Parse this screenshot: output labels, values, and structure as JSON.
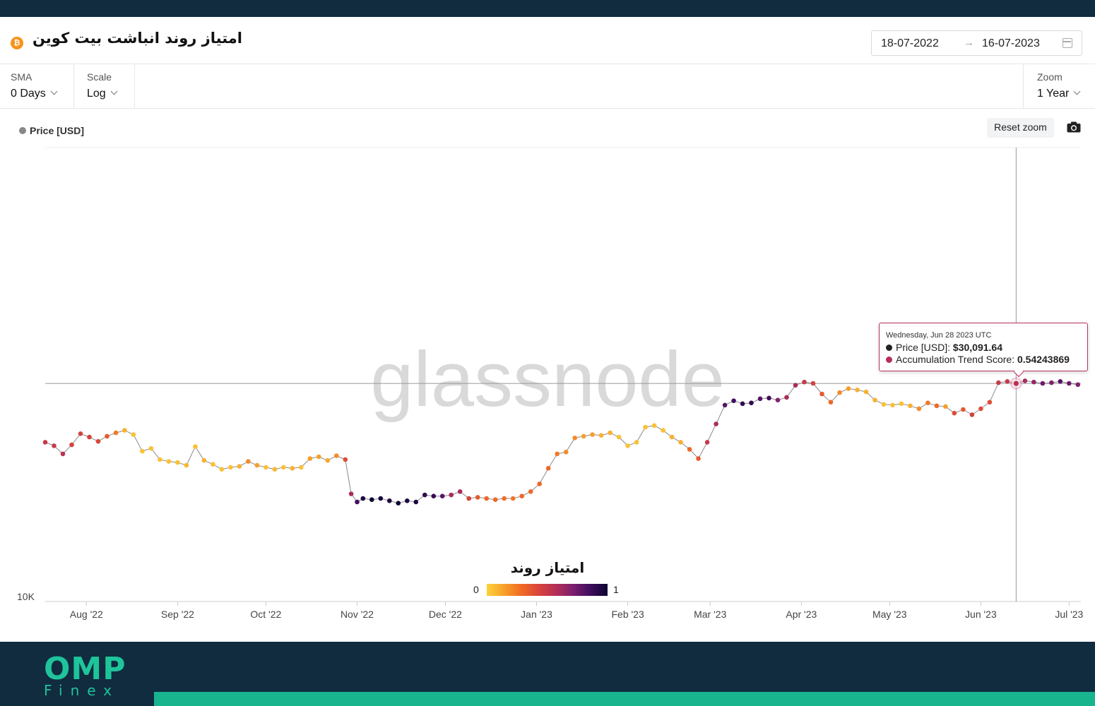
{
  "header": {
    "title": "امتیاز روند انباشت بیت کوین",
    "date_start": "18-07-2022",
    "date_arrow": "→",
    "date_end": "16-07-2023"
  },
  "controls": {
    "sma_label": "SMA",
    "sma_value": "0 Days",
    "scale_label": "Scale",
    "scale_value": "Log",
    "zoom_label": "Zoom",
    "zoom_value": "1 Year"
  },
  "legend": {
    "price_label": "Price [USD]"
  },
  "toolbar": {
    "reset_zoom": "Reset zoom"
  },
  "watermark": "glassnode",
  "tooltip": {
    "date": "Wednesday, Jun 28 2023 UTC",
    "price_label": "Price [USD]:",
    "price_value": "$30,091.64",
    "score_label": "Accumulation Trend Score:",
    "score_value": "0.54243869"
  },
  "colorbar": {
    "title": "امتیاز روند",
    "min": "0",
    "max": "1"
  },
  "brand": {
    "name": "OMP",
    "sub": "Finex"
  },
  "chart_data": {
    "type": "scatter",
    "y_scale": "log",
    "y_tick_labels": [
      "10K"
    ],
    "x_tick_labels": [
      "Aug '22",
      "Sep '22",
      "Oct '22",
      "Nov '22",
      "Dec '22",
      "Jan '23",
      "Feb '23",
      "Mar '23",
      "Apr '23",
      "May '23",
      "Jun '23",
      "Jul '23"
    ],
    "colormap": [
      "#fcd23a",
      "#f7a12a",
      "#f06b24",
      "#d9453a",
      "#b52f57",
      "#7c1e6f",
      "#3f0d5e",
      "#0d0530"
    ],
    "series": [
      {
        "name": "Price [USD]",
        "points": [
          {
            "t": 0,
            "v": 22200,
            "s": 0.5
          },
          {
            "t": 3,
            "v": 21800,
            "s": 0.5
          },
          {
            "t": 6,
            "v": 20900,
            "s": 0.55
          },
          {
            "t": 9,
            "v": 21900,
            "s": 0.45
          },
          {
            "t": 12,
            "v": 23200,
            "s": 0.45
          },
          {
            "t": 15,
            "v": 22800,
            "s": 0.45
          },
          {
            "t": 18,
            "v": 22300,
            "s": 0.42
          },
          {
            "t": 21,
            "v": 22900,
            "s": 0.35
          },
          {
            "t": 24,
            "v": 23300,
            "s": 0.25
          },
          {
            "t": 27,
            "v": 23600,
            "s": 0.1
          },
          {
            "t": 30,
            "v": 23100,
            "s": 0.05
          },
          {
            "t": 33,
            "v": 21200,
            "s": 0.05
          },
          {
            "t": 36,
            "v": 21500,
            "s": 0.05
          },
          {
            "t": 39,
            "v": 20300,
            "s": 0.05
          },
          {
            "t": 42,
            "v": 20100,
            "s": 0.05
          },
          {
            "t": 45,
            "v": 20000,
            "s": 0.05
          },
          {
            "t": 48,
            "v": 19700,
            "s": 0.08
          },
          {
            "t": 51,
            "v": 21700,
            "s": 0.05
          },
          {
            "t": 54,
            "v": 20200,
            "s": 0.1
          },
          {
            "t": 57,
            "v": 19800,
            "s": 0.05
          },
          {
            "t": 60,
            "v": 19300,
            "s": 0.05
          },
          {
            "t": 63,
            "v": 19500,
            "s": 0.05
          },
          {
            "t": 66,
            "v": 19600,
            "s": 0.1
          },
          {
            "t": 69,
            "v": 20100,
            "s": 0.2
          },
          {
            "t": 72,
            "v": 19700,
            "s": 0.15
          },
          {
            "t": 75,
            "v": 19500,
            "s": 0.05
          },
          {
            "t": 78,
            "v": 19300,
            "s": 0.08
          },
          {
            "t": 81,
            "v": 19500,
            "s": 0.05
          },
          {
            "t": 84,
            "v": 19400,
            "s": 0.1
          },
          {
            "t": 87,
            "v": 19500,
            "s": 0.05
          },
          {
            "t": 90,
            "v": 20400,
            "s": 0.15
          },
          {
            "t": 93,
            "v": 20600,
            "s": 0.15
          },
          {
            "t": 96,
            "v": 20200,
            "s": 0.12
          },
          {
            "t": 99,
            "v": 20700,
            "s": 0.2
          },
          {
            "t": 102,
            "v": 20300,
            "s": 0.4
          },
          {
            "t": 104,
            "v": 17000,
            "s": 0.6
          },
          {
            "t": 106,
            "v": 16300,
            "s": 0.85
          },
          {
            "t": 108,
            "v": 16600,
            "s": 0.95
          },
          {
            "t": 111,
            "v": 16500,
            "s": 1.0
          },
          {
            "t": 114,
            "v": 16600,
            "s": 0.97
          },
          {
            "t": 117,
            "v": 16400,
            "s": 0.95
          },
          {
            "t": 120,
            "v": 16200,
            "s": 1.0
          },
          {
            "t": 123,
            "v": 16400,
            "s": 0.95
          },
          {
            "t": 126,
            "v": 16300,
            "s": 0.95
          },
          {
            "t": 129,
            "v": 16900,
            "s": 0.9
          },
          {
            "t": 132,
            "v": 16800,
            "s": 0.88
          },
          {
            "t": 135,
            "v": 16800,
            "s": 0.8
          },
          {
            "t": 138,
            "v": 16900,
            "s": 0.6
          },
          {
            "t": 141,
            "v": 17200,
            "s": 0.6
          },
          {
            "t": 144,
            "v": 16600,
            "s": 0.45
          },
          {
            "t": 147,
            "v": 16700,
            "s": 0.35
          },
          {
            "t": 150,
            "v": 16600,
            "s": 0.3
          },
          {
            "t": 153,
            "v": 16500,
            "s": 0.3
          },
          {
            "t": 156,
            "v": 16600,
            "s": 0.28
          },
          {
            "t": 159,
            "v": 16600,
            "s": 0.25
          },
          {
            "t": 162,
            "v": 16800,
            "s": 0.3
          },
          {
            "t": 165,
            "v": 17200,
            "s": 0.3
          },
          {
            "t": 168,
            "v": 17900,
            "s": 0.3
          },
          {
            "t": 171,
            "v": 19400,
            "s": 0.3
          },
          {
            "t": 174,
            "v": 20900,
            "s": 0.25
          },
          {
            "t": 177,
            "v": 21100,
            "s": 0.2
          },
          {
            "t": 180,
            "v": 22700,
            "s": 0.2
          },
          {
            "t": 183,
            "v": 22900,
            "s": 0.15
          },
          {
            "t": 186,
            "v": 23100,
            "s": 0.15
          },
          {
            "t": 189,
            "v": 23000,
            "s": 0.1
          },
          {
            "t": 192,
            "v": 23300,
            "s": 0.1
          },
          {
            "t": 195,
            "v": 22800,
            "s": 0.05
          },
          {
            "t": 198,
            "v": 21800,
            "s": 0.05
          },
          {
            "t": 201,
            "v": 22200,
            "s": 0.05
          },
          {
            "t": 204,
            "v": 24000,
            "s": 0.05
          },
          {
            "t": 207,
            "v": 24200,
            "s": 0.05
          },
          {
            "t": 210,
            "v": 23600,
            "s": 0.05
          },
          {
            "t": 213,
            "v": 22800,
            "s": 0.1
          },
          {
            "t": 216,
            "v": 22200,
            "s": 0.1
          },
          {
            "t": 219,
            "v": 21400,
            "s": 0.3
          },
          {
            "t": 222,
            "v": 20400,
            "s": 0.35
          },
          {
            "t": 225,
            "v": 22200,
            "s": 0.5
          },
          {
            "t": 228,
            "v": 24400,
            "s": 0.6
          },
          {
            "t": 231,
            "v": 26900,
            "s": 0.8
          },
          {
            "t": 234,
            "v": 27500,
            "s": 0.85
          },
          {
            "t": 237,
            "v": 27100,
            "s": 0.9
          },
          {
            "t": 240,
            "v": 27200,
            "s": 0.9
          },
          {
            "t": 243,
            "v": 27800,
            "s": 0.8
          },
          {
            "t": 246,
            "v": 27900,
            "s": 0.85
          },
          {
            "t": 249,
            "v": 27600,
            "s": 0.7
          },
          {
            "t": 252,
            "v": 28000,
            "s": 0.6
          },
          {
            "t": 255,
            "v": 29800,
            "s": 0.6
          },
          {
            "t": 258,
            "v": 30300,
            "s": 0.5
          },
          {
            "t": 261,
            "v": 30100,
            "s": 0.45
          },
          {
            "t": 264,
            "v": 28500,
            "s": 0.35
          },
          {
            "t": 267,
            "v": 27300,
            "s": 0.3
          },
          {
            "t": 270,
            "v": 28700,
            "s": 0.2
          },
          {
            "t": 273,
            "v": 29300,
            "s": 0.15
          },
          {
            "t": 276,
            "v": 29100,
            "s": 0.1
          },
          {
            "t": 279,
            "v": 28800,
            "s": 0.1
          },
          {
            "t": 282,
            "v": 27600,
            "s": 0.1
          },
          {
            "t": 285,
            "v": 27000,
            "s": 0.05
          },
          {
            "t": 288,
            "v": 26900,
            "s": 0.05
          },
          {
            "t": 291,
            "v": 27100,
            "s": 0.05
          },
          {
            "t": 294,
            "v": 26800,
            "s": 0.1
          },
          {
            "t": 297,
            "v": 26400,
            "s": 0.2
          },
          {
            "t": 300,
            "v": 27200,
            "s": 0.25
          },
          {
            "t": 303,
            "v": 26800,
            "s": 0.3
          },
          {
            "t": 306,
            "v": 26700,
            "s": 0.15
          },
          {
            "t": 309,
            "v": 25800,
            "s": 0.4
          },
          {
            "t": 312,
            "v": 26300,
            "s": 0.35
          },
          {
            "t": 315,
            "v": 25600,
            "s": 0.45
          },
          {
            "t": 318,
            "v": 26400,
            "s": 0.4
          },
          {
            "t": 321,
            "v": 27300,
            "s": 0.4
          },
          {
            "t": 324,
            "v": 30200,
            "s": 0.5
          },
          {
            "t": 327,
            "v": 30400,
            "s": 0.5
          },
          {
            "t": 330,
            "v": 30100,
            "s": 0.54
          },
          {
            "t": 333,
            "v": 30500,
            "s": 0.6
          },
          {
            "t": 336,
            "v": 30300,
            "s": 0.65
          },
          {
            "t": 339,
            "v": 30100,
            "s": 0.75
          },
          {
            "t": 342,
            "v": 30200,
            "s": 0.7
          },
          {
            "t": 345,
            "v": 30400,
            "s": 0.8
          },
          {
            "t": 348,
            "v": 30100,
            "s": 0.75
          },
          {
            "t": 351,
            "v": 29900,
            "s": 0.7
          }
        ]
      }
    ],
    "highlight": {
      "t": 330,
      "v": 30091.64,
      "s": 0.54243869
    }
  }
}
